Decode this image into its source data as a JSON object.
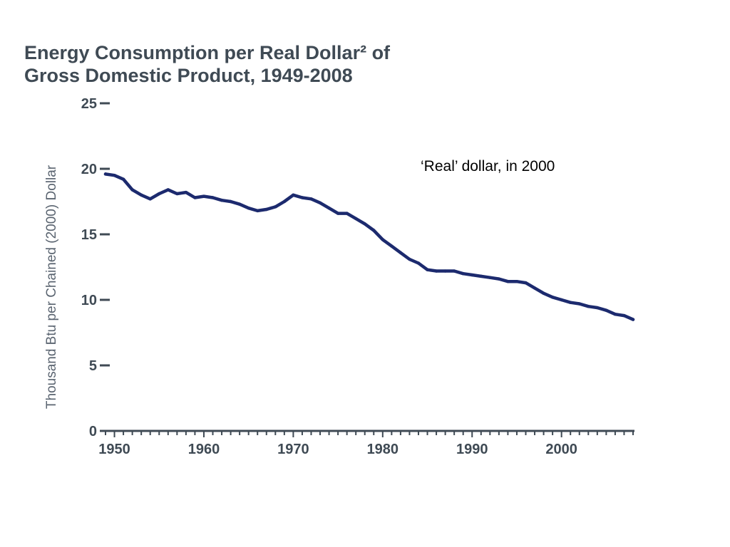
{
  "chart_data": {
    "type": "line",
    "title_lines": [
      "Energy Consumption per Real Dollar² of",
      "Gross Domestic Product, 1949-2008"
    ],
    "xlabel": "",
    "ylabel": "Thousand Btu per Chained (2000) Dollar",
    "annotation": "‘Real’ dollar, in 2000",
    "xlim": [
      1949,
      2008
    ],
    "ylim": [
      0,
      25
    ],
    "x_ticks": [
      1950,
      1960,
      1970,
      1980,
      1990,
      2000
    ],
    "y_ticks": [
      0,
      5,
      10,
      15,
      20,
      25
    ],
    "grid": false,
    "legend": "none",
    "series_color": "#1c2a6e",
    "x": [
      1949,
      1950,
      1951,
      1952,
      1953,
      1954,
      1955,
      1956,
      1957,
      1958,
      1959,
      1960,
      1961,
      1962,
      1963,
      1964,
      1965,
      1966,
      1967,
      1968,
      1969,
      1970,
      1971,
      1972,
      1973,
      1974,
      1975,
      1976,
      1977,
      1978,
      1979,
      1980,
      1981,
      1982,
      1983,
      1984,
      1985,
      1986,
      1987,
      1988,
      1989,
      1990,
      1991,
      1992,
      1993,
      1994,
      1995,
      1996,
      1997,
      1998,
      1999,
      2000,
      2001,
      2002,
      2003,
      2004,
      2005,
      2006,
      2007,
      2008
    ],
    "values": [
      19.6,
      19.5,
      19.2,
      18.4,
      18.0,
      17.7,
      18.1,
      18.4,
      18.1,
      18.2,
      17.8,
      17.9,
      17.8,
      17.6,
      17.5,
      17.3,
      17.0,
      16.8,
      16.9,
      17.1,
      17.5,
      18.0,
      17.8,
      17.7,
      17.4,
      17.0,
      16.6,
      16.6,
      16.2,
      15.8,
      15.3,
      14.6,
      14.1,
      13.6,
      13.1,
      12.8,
      12.3,
      12.2,
      12.2,
      12.2,
      12.0,
      11.9,
      11.8,
      11.7,
      11.6,
      11.4,
      11.4,
      11.3,
      10.9,
      10.5,
      10.2,
      10.0,
      9.8,
      9.7,
      9.5,
      9.4,
      9.2,
      8.9,
      8.8,
      8.5
    ]
  }
}
